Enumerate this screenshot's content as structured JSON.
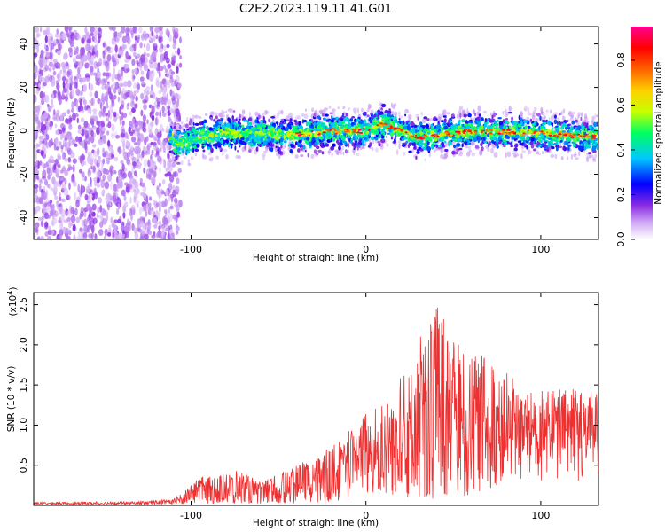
{
  "title": "C2E2.2023.119.11.41.G01",
  "chart_data": [
    {
      "type": "heatmap",
      "name": "spectrogram",
      "xlabel": "Height of straight line (km)",
      "ylabel": "Frequency (Hz)",
      "xlim": [
        -190,
        133
      ],
      "ylim": [
        -50,
        48
      ],
      "xticks": [
        -100,
        0,
        100
      ],
      "xtick_labels": [
        "-100",
        "0",
        "100"
      ],
      "yticks": [
        40,
        20,
        0,
        -20,
        -40
      ],
      "ytick_labels": [
        "40",
        "20",
        "0",
        "-20",
        "-40"
      ],
      "signal_band": {
        "noise_region_x": [
          -190,
          -112
        ],
        "band_start_x": -112,
        "band_center_hz": [
          {
            "x": -110,
            "hz": -6
          },
          {
            "x": -80,
            "hz": -1
          },
          {
            "x": -40,
            "hz": -2
          },
          {
            "x": -20,
            "hz": 0
          },
          {
            "x": 0,
            "hz": 0
          },
          {
            "x": 10,
            "hz": 3
          },
          {
            "x": 30,
            "hz": -3
          },
          {
            "x": 60,
            "hz": 0
          },
          {
            "x": 100,
            "hz": -1
          },
          {
            "x": 133,
            "hz": -3
          }
        ]
      },
      "colorbar": {
        "label": "Normalized spectral amplitude",
        "range": [
          0,
          0.95
        ],
        "ticks": [
          0.0,
          0.2,
          0.4,
          0.6,
          0.8
        ],
        "tick_labels": [
          "0.0",
          "0.2",
          "0.4",
          "0.6",
          "0.8"
        ],
        "colors": [
          "#ffffff",
          "#cfa8f5",
          "#8a2be2",
          "#0000ff",
          "#00c8ff",
          "#00ff60",
          "#c8ff00",
          "#ffd000",
          "#ff6000",
          "#ff0000",
          "#ff0090"
        ]
      }
    },
    {
      "type": "line",
      "name": "snr",
      "xlabel": "Height of straight line (km)",
      "ylabel": "SNR (10 * v/v)",
      "multiplier_label": "(x10",
      "multiplier_exponent": "4",
      "multiplier_close": ")",
      "xlim": [
        -190,
        133
      ],
      "ylim": [
        0,
        2.65
      ],
      "xticks": [
        -100,
        0,
        100
      ],
      "xtick_labels": [
        "-100",
        "0",
        "100"
      ],
      "yticks": [
        0.5,
        1.0,
        1.5,
        2.0,
        2.5
      ],
      "ytick_labels": [
        "0.5",
        "1.0",
        "1.5",
        "2.0",
        "2.5"
      ],
      "color": "#ee3030",
      "envelope": [
        {
          "x": -190,
          "lo": 0.01,
          "hi": 0.04
        },
        {
          "x": -130,
          "lo": 0.01,
          "hi": 0.05
        },
        {
          "x": -110,
          "lo": 0.02,
          "hi": 0.08
        },
        {
          "x": -95,
          "lo": 0.05,
          "hi": 0.35
        },
        {
          "x": -75,
          "lo": 0.05,
          "hi": 0.45
        },
        {
          "x": -60,
          "lo": 0.05,
          "hi": 0.3
        },
        {
          "x": -45,
          "lo": 0.05,
          "hi": 0.45
        },
        {
          "x": -30,
          "lo": 0.05,
          "hi": 0.6
        },
        {
          "x": -15,
          "lo": 0.1,
          "hi": 0.8
        },
        {
          "x": -5,
          "lo": 0.3,
          "hi": 1.05
        },
        {
          "x": 10,
          "lo": 0.3,
          "hi": 1.35
        },
        {
          "x": 25,
          "lo": 0.2,
          "hi": 1.85
        },
        {
          "x": 40,
          "lo": 0.15,
          "hi": 2.55
        },
        {
          "x": 55,
          "lo": 0.2,
          "hi": 2.1
        },
        {
          "x": 70,
          "lo": 0.4,
          "hi": 1.85
        },
        {
          "x": 90,
          "lo": 0.5,
          "hi": 1.5
        },
        {
          "x": 110,
          "lo": 0.6,
          "hi": 1.5
        },
        {
          "x": 133,
          "lo": 0.6,
          "hi": 1.5
        }
      ]
    }
  ]
}
